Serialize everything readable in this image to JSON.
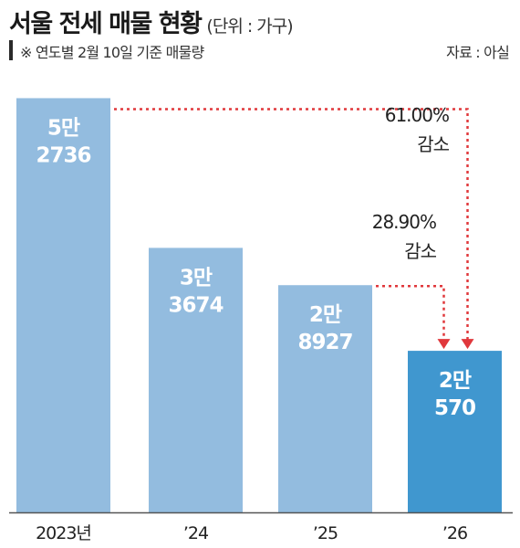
{
  "title": "서울 전세 매물 현황",
  "unit": "(단위 : 가구)",
  "note": "※ 연도별 2월 10일 기준 매물량",
  "source": "자료 : 아실",
  "colors": {
    "bar": "#93bcdf",
    "highlight": "#4097cf",
    "arrow": "#e0383c",
    "axis": "#555555"
  },
  "chart_data": {
    "type": "bar",
    "categories": [
      "2023년",
      "’24",
      "’25",
      "’26"
    ],
    "values": [
      52736,
      33674,
      28927,
      20570
    ],
    "value_labels": [
      [
        "5만",
        "2736"
      ],
      [
        "3만",
        "3674"
      ],
      [
        "2만",
        "8927"
      ],
      [
        "2만",
        "570"
      ]
    ],
    "ylim": [
      0,
      55000
    ],
    "annotations": [
      {
        "from": "2023년",
        "to": "’26",
        "text": [
          "61.00%",
          "감소"
        ]
      },
      {
        "from": "’25",
        "to": "’26",
        "text": [
          "28.90%",
          "감소"
        ]
      }
    ]
  }
}
